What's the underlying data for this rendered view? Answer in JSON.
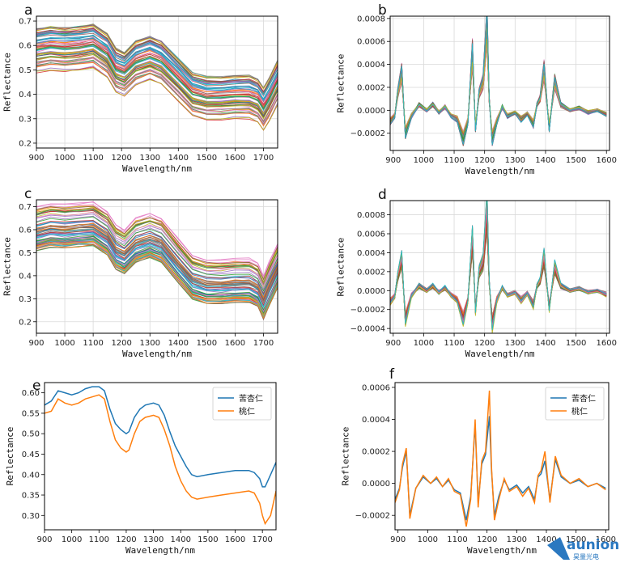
{
  "chart_data": [
    {
      "panel": "a",
      "type": "line",
      "xlabel": "Wavelength/nm",
      "ylabel": "Reflectance",
      "xlim": [
        900,
        1750
      ],
      "ylim": [
        0.18,
        0.72
      ],
      "xticks": [
        900,
        1000,
        1100,
        1200,
        1300,
        1400,
        1500,
        1600,
        1700
      ],
      "yticks": [
        0.2,
        0.3,
        0.4,
        0.5,
        0.6,
        0.7
      ],
      "ytick_labels": [
        "0.2",
        "0.3",
        "0.4",
        "0.5",
        "0.6",
        "0.7"
      ],
      "grid": true,
      "many_spectra": true,
      "x": [
        900,
        950,
        1000,
        1050,
        1100,
        1150,
        1180,
        1210,
        1250,
        1300,
        1340,
        1400,
        1450,
        1500,
        1550,
        1600,
        1650,
        1680,
        1700,
        1720,
        1750
      ],
      "mean": [
        0.58,
        0.59,
        0.585,
        0.59,
        0.6,
        0.56,
        0.5,
        0.485,
        0.53,
        0.55,
        0.53,
        0.46,
        0.4,
        0.385,
        0.385,
        0.39,
        0.39,
        0.375,
        0.34,
        0.38,
        0.45
      ],
      "spread": 0.09
    },
    {
      "panel": "b",
      "type": "line",
      "xlabel": "Wavelength/nm",
      "ylabel": "Reflectance",
      "xlim": [
        890,
        1610
      ],
      "ylim": [
        -0.00035,
        0.00082
      ],
      "xticks": [
        900,
        1000,
        1100,
        1200,
        1300,
        1400,
        1500,
        1600
      ],
      "yticks": [
        -0.0002,
        0.0,
        0.0002,
        0.0004,
        0.0006,
        0.0008
      ],
      "ytick_labels": [
        "−0.0002",
        "0.0000",
        "0.0002",
        "0.0004",
        "0.0006",
        "0.0008"
      ],
      "grid": true,
      "many_spectra": true,
      "x": [
        890,
        905,
        915,
        928,
        940,
        960,
        985,
        1010,
        1030,
        1050,
        1070,
        1090,
        1110,
        1130,
        1145,
        1160,
        1170,
        1182,
        1195,
        1208,
        1215,
        1225,
        1240,
        1258,
        1275,
        1300,
        1320,
        1340,
        1360,
        1372,
        1382,
        1395,
        1412,
        1430,
        1450,
        1480,
        1510,
        1540,
        1570,
        1600
      ],
      "mean": [
        -0.0001,
        -5e-05,
        0.00015,
        0.00033,
        -0.0002,
        -5e-05,
        5e-05,
        0.0,
        5e-05,
        -2e-05,
        3e-05,
        -5e-05,
        -8e-05,
        -0.00025,
        -0.0001,
        0.0005,
        -0.00015,
        0.00015,
        0.00025,
        0.00075,
        0.0001,
        -0.00025,
        -0.0001,
        3e-05,
        -5e-05,
        -2e-05,
        -8e-05,
        -3e-05,
        -0.00012,
        5e-05,
        0.0001,
        0.00035,
        -0.00015,
        0.00025,
        5e-05,
        0.0,
        2e-05,
        -2e-05,
        0.0,
        -4e-05
      ],
      "spread": 4e-05
    },
    {
      "panel": "c",
      "type": "line",
      "xlabel": "Wavelength/nm",
      "ylabel": "Reflectance",
      "xlim": [
        900,
        1750
      ],
      "ylim": [
        0.15,
        0.73
      ],
      "xticks": [
        900,
        1000,
        1100,
        1200,
        1300,
        1400,
        1500,
        1600,
        1700
      ],
      "yticks": [
        0.2,
        0.3,
        0.4,
        0.5,
        0.6,
        0.7
      ],
      "ytick_labels": [
        "0.2",
        "0.3",
        "0.4",
        "0.5",
        "0.6",
        "0.7"
      ],
      "grid": true,
      "many_spectra": true,
      "x": [
        900,
        950,
        1000,
        1050,
        1100,
        1150,
        1180,
        1210,
        1250,
        1300,
        1340,
        1400,
        1450,
        1500,
        1550,
        1600,
        1650,
        1680,
        1700,
        1720,
        1750
      ],
      "mean": [
        0.6,
        0.615,
        0.61,
        0.615,
        0.62,
        0.58,
        0.52,
        0.5,
        0.55,
        0.57,
        0.55,
        0.46,
        0.39,
        0.37,
        0.37,
        0.375,
        0.375,
        0.355,
        0.3,
        0.36,
        0.44
      ],
      "spread": 0.1
    },
    {
      "panel": "d",
      "type": "line",
      "xlabel": "Wavelength/nm",
      "ylabel": "Reflectance",
      "xlim": [
        890,
        1610
      ],
      "ylim": [
        -0.00045,
        0.00095
      ],
      "xticks": [
        900,
        1000,
        1100,
        1200,
        1300,
        1400,
        1500,
        1600
      ],
      "yticks": [
        -0.0004,
        -0.0002,
        0.0,
        0.0002,
        0.0004,
        0.0006,
        0.0008
      ],
      "ytick_labels": [
        "−0.0004",
        "−0.0002",
        "0.0000",
        "0.0002",
        "0.0004",
        "0.0006",
        "0.0008"
      ],
      "grid": true,
      "many_spectra": true,
      "x": [
        890,
        905,
        915,
        928,
        940,
        960,
        985,
        1010,
        1030,
        1050,
        1070,
        1090,
        1110,
        1130,
        1145,
        1160,
        1170,
        1182,
        1195,
        1208,
        1215,
        1225,
        1240,
        1258,
        1275,
        1300,
        1320,
        1340,
        1360,
        1372,
        1382,
        1395,
        1412,
        1430,
        1450,
        1480,
        1510,
        1540,
        1570,
        1600
      ],
      "mean": [
        -0.00012,
        -6e-05,
        0.00015,
        0.00033,
        -0.0003,
        -5e-05,
        5e-05,
        0.0,
        5e-05,
        -2e-05,
        3e-05,
        -5e-05,
        -0.0001,
        -0.0003,
        -0.0001,
        0.00055,
        -0.0002,
        0.0002,
        0.0003,
        0.00085,
        0.0001,
        -0.00035,
        -0.0001,
        3e-05,
        -5e-05,
        -2e-05,
        -0.0001,
        -3e-05,
        -0.00015,
        5e-05,
        0.0001,
        0.00035,
        -0.00018,
        0.00025,
        5e-05,
        0.0,
        2e-05,
        -2e-05,
        0.0,
        -4e-05
      ],
      "spread": 5e-05
    },
    {
      "panel": "e",
      "type": "line",
      "xlabel": "Wavelength/nm",
      "ylabel": "Reflectance",
      "xlim": [
        900,
        1750
      ],
      "ylim": [
        0.265,
        0.625
      ],
      "xticks": [
        900,
        1000,
        1100,
        1200,
        1300,
        1400,
        1500,
        1600,
        1700
      ],
      "yticks": [
        0.3,
        0.35,
        0.4,
        0.45,
        0.5,
        0.55,
        0.6
      ],
      "ytick_labels": [
        "0.30",
        "0.35",
        "0.40",
        "0.45",
        "0.50",
        "0.55",
        "0.60"
      ],
      "grid": false,
      "legend": "top-right",
      "x": [
        900,
        925,
        950,
        975,
        1000,
        1025,
        1050,
        1075,
        1100,
        1120,
        1140,
        1160,
        1180,
        1200,
        1210,
        1230,
        1250,
        1270,
        1300,
        1320,
        1340,
        1360,
        1380,
        1400,
        1420,
        1440,
        1460,
        1500,
        1550,
        1600,
        1650,
        1670,
        1690,
        1700,
        1710,
        1730,
        1750
      ],
      "series": [
        {
          "name": "苦杏仁",
          "color": "#1f77b4",
          "values": [
            0.57,
            0.58,
            0.605,
            0.6,
            0.595,
            0.6,
            0.61,
            0.615,
            0.615,
            0.605,
            0.56,
            0.525,
            0.51,
            0.5,
            0.505,
            0.54,
            0.56,
            0.57,
            0.575,
            0.57,
            0.545,
            0.505,
            0.47,
            0.445,
            0.42,
            0.4,
            0.395,
            0.4,
            0.405,
            0.41,
            0.41,
            0.405,
            0.39,
            0.37,
            0.37,
            0.4,
            0.43
          ]
        },
        {
          "name": "桃仁",
          "color": "#ff7f0e",
          "values": [
            0.55,
            0.555,
            0.585,
            0.575,
            0.57,
            0.575,
            0.585,
            0.59,
            0.595,
            0.585,
            0.53,
            0.485,
            0.465,
            0.455,
            0.46,
            0.5,
            0.53,
            0.54,
            0.545,
            0.54,
            0.51,
            0.47,
            0.42,
            0.385,
            0.36,
            0.345,
            0.34,
            0.345,
            0.35,
            0.355,
            0.36,
            0.355,
            0.33,
            0.3,
            0.28,
            0.3,
            0.36
          ]
        }
      ]
    },
    {
      "panel": "f",
      "type": "line",
      "xlabel": "Wavelength/nm",
      "ylabel": "Reflectance",
      "xlim": [
        890,
        1610
      ],
      "ylim": [
        -0.00029,
        0.00063
      ],
      "xticks": [
        900,
        1000,
        1100,
        1200,
        1300,
        1400,
        1500,
        1600
      ],
      "yticks": [
        -0.0002,
        0.0,
        0.0002,
        0.0004,
        0.0006
      ],
      "ytick_labels": [
        "−0.0002",
        "0.0000",
        "0.0002",
        "0.0004",
        "0.0006"
      ],
      "grid": false,
      "legend": "top-right",
      "x": [
        890,
        905,
        915,
        928,
        940,
        960,
        985,
        1010,
        1030,
        1050,
        1070,
        1090,
        1110,
        1130,
        1145,
        1160,
        1170,
        1182,
        1195,
        1208,
        1215,
        1225,
        1240,
        1258,
        1275,
        1300,
        1320,
        1340,
        1360,
        1372,
        1382,
        1395,
        1412,
        1430,
        1450,
        1480,
        1510,
        1540,
        1570,
        1600
      ],
      "series": [
        {
          "name": "苦杏仁",
          "color": "#1f77b4",
          "values": [
            -0.0001,
            -3e-05,
            0.0001,
            0.0002,
            -0.0002,
            -3e-05,
            4e-05,
            0.0,
            3e-05,
            -2e-05,
            2e-05,
            -4e-05,
            -6e-05,
            -0.00023,
            -8e-05,
            0.00037,
            -0.00012,
            0.00012,
            0.00018,
            0.00042,
            8e-05,
            -0.0002,
            -8e-05,
            2e-05,
            -4e-05,
            -1e-05,
            -6e-05,
            -2e-05,
            -0.0001,
            4e-05,
            6e-05,
            0.00014,
            -0.0001,
            0.00015,
            4e-05,
            0.0,
            2e-05,
            -2e-05,
            0.0,
            -3e-05
          ]
        },
        {
          "name": "桃仁",
          "color": "#ff7f0e",
          "values": [
            -0.00012,
            -4e-05,
            0.00012,
            0.00022,
            -0.00022,
            -3e-05,
            5e-05,
            0.0,
            4e-05,
            -2e-05,
            3e-05,
            -5e-05,
            -7e-05,
            -0.00027,
            -0.0001,
            0.0004,
            -0.00015,
            0.00014,
            0.0002,
            0.00058,
            0.0001,
            -0.00023,
            -0.0001,
            3e-05,
            -5e-05,
            -2e-05,
            -8e-05,
            -3e-05,
            -0.00012,
            5e-05,
            8e-05,
            0.0002,
            -0.00012,
            0.00017,
            5e-05,
            0.0,
            3e-05,
            -2e-05,
            0.0,
            -4e-05
          ]
        }
      ]
    }
  ],
  "panel_labels": [
    "a",
    "b",
    "c",
    "d",
    "e",
    "f"
  ],
  "logo": {
    "text": "aunion",
    "subtext": "昊量光电"
  }
}
